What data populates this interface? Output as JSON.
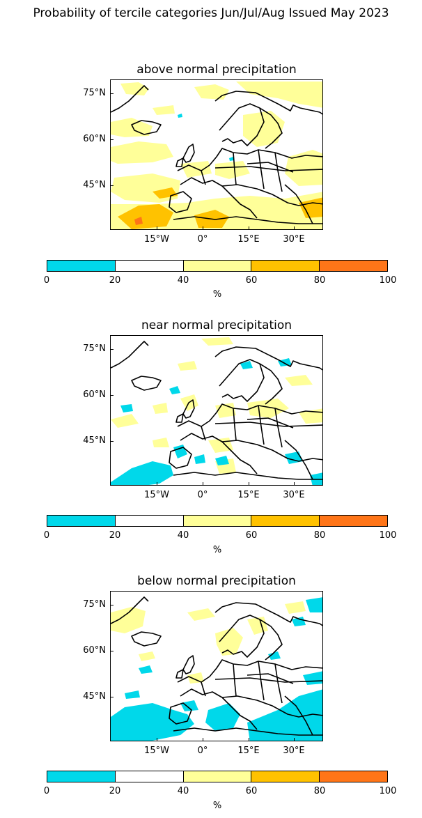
{
  "title": "Probability of tercile categories Jun/Jul/Aug Issued May 2023",
  "panels": [
    {
      "title": "above normal precipitation",
      "dominant_fill": "light-yellow-and-orange"
    },
    {
      "title": "near normal precipitation",
      "dominant_fill": "scattered-yellow-and-cyan"
    },
    {
      "title": "below normal precipitation",
      "dominant_fill": "cyan-in-south"
    }
  ],
  "lat_labels": [
    "75°N",
    "60°N",
    "45°N"
  ],
  "lon_labels": [
    "15°W",
    "0°",
    "15°E",
    "30°E"
  ],
  "colorbar": {
    "ticks": [
      "0",
      "20",
      "40",
      "60",
      "80",
      "100"
    ],
    "unit": "%",
    "colors": [
      "#00d8ea",
      "#ffffff",
      "#ffff99",
      "#ffc200",
      "#ff7518"
    ]
  }
}
